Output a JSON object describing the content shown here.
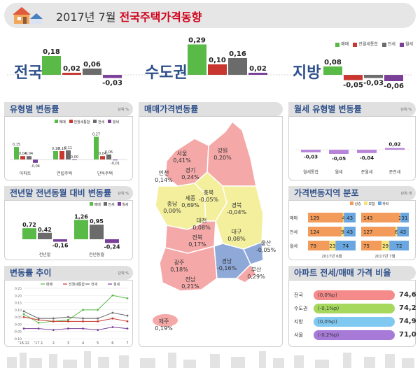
{
  "header": {
    "title_prefix": "2017년 7월",
    "title_main": "전국주택가격동향"
  },
  "legend": {
    "items": [
      "매매",
      "전월세통합",
      "전세",
      "월세"
    ],
    "colors": [
      "#5aba47",
      "#c9362f",
      "#6b6b6b",
      "#7a3f99"
    ]
  },
  "top_summary": {
    "regions": [
      {
        "name": "전국",
        "values": [
          "0,18",
          "0,02",
          "0,06",
          "-0,03"
        ]
      },
      {
        "name": "수도권",
        "values": [
          "0,29",
          "0,10",
          "0,16",
          "0,02"
        ]
      },
      {
        "name": "지방",
        "values": [
          "0,08",
          "-0,05",
          "-0,03",
          "-0,06"
        ]
      }
    ]
  },
  "panels": {
    "type_change": {
      "title": "유형별 변동률",
      "unit": "단위:%",
      "groups": [
        "아파트",
        "연립주택",
        "단독주택"
      ],
      "values": [
        [
          "0,15",
          "0,04",
          "0,04",
          "-0,04"
        ],
        [
          "0,10",
          "0,10",
          "0,11",
          "0,00"
        ],
        [
          "0,27",
          "0,04",
          "0,06",
          "-0,01"
        ]
      ]
    },
    "ytd": {
      "title": "전년말 전년동월 대비 변동률",
      "unit": "단위:%",
      "groups": [
        "전년말",
        "전년동월"
      ],
      "values": [
        [
          "0,72",
          "0,42",
          "-0,16"
        ],
        [
          "1,26",
          "0,95",
          "-0,24"
        ]
      ],
      "legend": [
        "매매",
        "전세",
        "월세"
      ]
    },
    "trend": {
      "title": "변동률 추이",
      "unit": "단위:%",
      "xlabels": [
        "'16.12",
        "'17.1",
        "2",
        "3",
        "4",
        "5",
        "6",
        "7"
      ],
      "ylabels": [
        "0.25",
        "0.20",
        "0.15",
        "0.10",
        "0.05",
        "0.00",
        "-0.05",
        "-0.10"
      ],
      "legend": [
        "매매",
        "전월세통합",
        "전세",
        "월세"
      ]
    },
    "map": {
      "title": "매매가격변동률"
    },
    "monthly_rent": {
      "title": "월세 유형별 변동률",
      "unit": "단위:%",
      "categories": [
        "월세통합",
        "월세",
        "준월세",
        "준전세"
      ],
      "values": [
        "-0,03",
        "-0,05",
        "-0,04",
        "0,02"
      ]
    },
    "distribution": {
      "title": "가격변동지역 분포",
      "unit": "단위:개",
      "legend": [
        "상승",
        "보합",
        "하락"
      ],
      "col_labels": [
        "2017년 6월",
        "2017년 7월"
      ],
      "rows": [
        {
          "label": "매매",
          "jun": [
            "129",
            "4",
            "43"
          ],
          "jul": [
            "143",
            "2",
            "31"
          ]
        },
        {
          "label": "전세",
          "jun": [
            "124",
            "9",
            "43"
          ],
          "jul": [
            "127",
            "6",
            "43"
          ]
        },
        {
          "label": "월세",
          "jun": [
            "79",
            "23",
            "74"
          ],
          "jul": [
            "75",
            "29",
            "72"
          ]
        }
      ]
    },
    "ratio": {
      "title": "아파트 전세/매매 가격 비율",
      "rows": [
        {
          "label": "전국",
          "note": "(0,0%p)",
          "value": "74,6"
        },
        {
          "label": "수도권",
          "note": "(-0,1%p)",
          "value": "74,2"
        },
        {
          "label": "지방",
          "note": "(0,0%p)",
          "value": "74,9"
        },
        {
          "label": "서울",
          "note": "(-0,2%p)",
          "value": "71,0"
        }
      ]
    }
  },
  "map_labels": [
    {
      "name": "서울",
      "value": "0,41%"
    },
    {
      "name": "인천",
      "value": "0,14%"
    },
    {
      "name": "경기",
      "value": "0,24%"
    },
    {
      "name": "강원",
      "value": "0,20%"
    },
    {
      "name": "충남",
      "value": "0,00%"
    },
    {
      "name": "세종",
      "value": "0,69%"
    },
    {
      "name": "충북",
      "value": "-0,05%"
    },
    {
      "name": "대전",
      "value": "0,08%"
    },
    {
      "name": "경북",
      "value": "-0,04%"
    },
    {
      "name": "대구",
      "value": "0,08%"
    },
    {
      "name": "전북",
      "value": "0,17%"
    },
    {
      "name": "광주",
      "value": "0,18%"
    },
    {
      "name": "전남",
      "value": "0,21%"
    },
    {
      "name": "경남",
      "value": "-0,16%"
    },
    {
      "name": "울산",
      "value": "-0,05%"
    },
    {
      "name": "부산",
      "value": "0,29%"
    },
    {
      "name": "제주",
      "value": "0,19%"
    }
  ],
  "chart_data": [
    {
      "type": "bar",
      "title": "전국",
      "categories": [
        "매매",
        "전월세통합",
        "전세",
        "월세"
      ],
      "values": [
        0.18,
        0.02,
        0.06,
        -0.03
      ]
    },
    {
      "type": "bar",
      "title": "수도권",
      "categories": [
        "매매",
        "전월세통합",
        "전세",
        "월세"
      ],
      "values": [
        0.29,
        0.1,
        0.16,
        0.02
      ]
    },
    {
      "type": "bar",
      "title": "지방",
      "categories": [
        "매매",
        "전월세통합",
        "전세",
        "월세"
      ],
      "values": [
        0.08,
        -0.05,
        -0.03,
        -0.06
      ]
    },
    {
      "type": "bar",
      "title": "유형별 변동률",
      "categories": [
        "아파트",
        "연립주택",
        "단독주택"
      ],
      "series": [
        {
          "name": "매매",
          "values": [
            0.15,
            0.1,
            0.27
          ]
        },
        {
          "name": "전월세통합",
          "values": [
            0.04,
            0.1,
            0.04
          ]
        },
        {
          "name": "전세",
          "values": [
            0.04,
            0.11,
            0.06
          ]
        },
        {
          "name": "월세",
          "values": [
            -0.04,
            0.0,
            -0.01
          ]
        }
      ]
    },
    {
      "type": "bar",
      "title": "전년말 전년동월 대비 변동률",
      "categories": [
        "전년말",
        "전년동월"
      ],
      "series": [
        {
          "name": "매매",
          "values": [
            0.72,
            1.26
          ]
        },
        {
          "name": "전세",
          "values": [
            0.42,
            0.95
          ]
        },
        {
          "name": "월세",
          "values": [
            -0.16,
            -0.24
          ]
        }
      ]
    },
    {
      "type": "line",
      "title": "변동률 추이",
      "x": [
        "'16.12",
        "'17.1",
        "2",
        "3",
        "4",
        "5",
        "6",
        "7"
      ],
      "ylim": [
        -0.1,
        0.25
      ],
      "series": [
        {
          "name": "매매",
          "values": [
            0.07,
            0.01,
            0.02,
            0.03,
            0.1,
            0.1,
            0.2,
            0.18
          ]
        },
        {
          "name": "전월세통합",
          "values": [
            0.05,
            0.03,
            0.02,
            0.02,
            0.02,
            0.02,
            0.04,
            0.02
          ]
        },
        {
          "name": "전세",
          "values": [
            0.09,
            0.04,
            0.04,
            0.05,
            0.04,
            0.04,
            0.08,
            0.06
          ]
        },
        {
          "name": "월세",
          "values": [
            -0.03,
            -0.03,
            -0.04,
            -0.03,
            -0.03,
            -0.04,
            -0.02,
            -0.03
          ]
        }
      ]
    },
    {
      "type": "bar",
      "title": "월세 유형별 변동률",
      "categories": [
        "월세통합",
        "월세",
        "준월세",
        "준전세"
      ],
      "values": [
        -0.03,
        -0.05,
        -0.04,
        0.02
      ]
    },
    {
      "type": "bar",
      "title": "가격변동지역 분포",
      "categories": [
        "매매 6월",
        "매매 7월",
        "전세 6월",
        "전세 7월",
        "월세 6월",
        "월세 7월"
      ],
      "series": [
        {
          "name": "상승",
          "values": [
            129,
            143,
            124,
            127,
            79,
            75
          ]
        },
        {
          "name": "보합",
          "values": [
            4,
            2,
            9,
            6,
            23,
            29
          ]
        },
        {
          "name": "하락",
          "values": [
            43,
            31,
            43,
            43,
            74,
            72
          ]
        }
      ]
    }
  ]
}
